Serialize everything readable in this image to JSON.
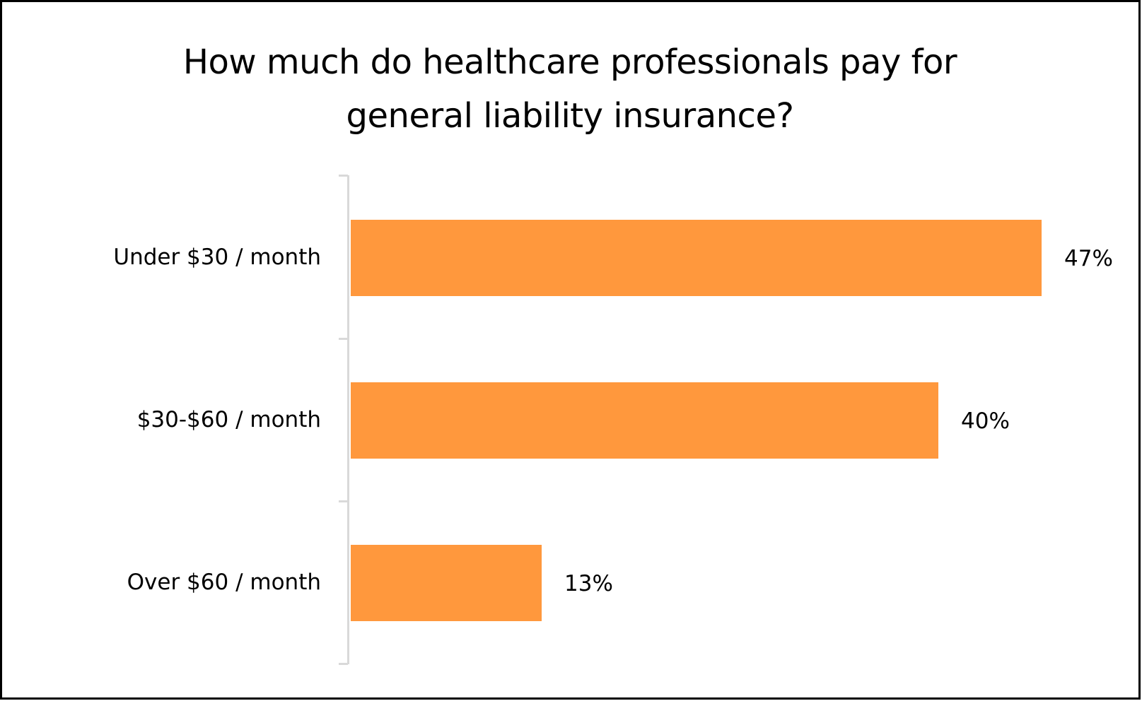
{
  "chart_data": {
    "type": "bar",
    "orientation": "horizontal",
    "title": "How much do healthcare professionals pay for general liability insurance?",
    "title_lines": [
      "How much do healthcare professionals pay for",
      "general liability insurance?"
    ],
    "categories": [
      "Under $30 / month",
      "$30-$60 / month",
      "Over $60 / month"
    ],
    "values": [
      47,
      40,
      13
    ],
    "value_labels": [
      "47%",
      "40%",
      "13%"
    ],
    "unit": "%",
    "xlabel": "",
    "ylabel": "",
    "xlim": [
      0,
      47
    ],
    "grid": false,
    "legend": null,
    "bar_color": "#FF983D",
    "axis_color": "#D9D9D9"
  }
}
